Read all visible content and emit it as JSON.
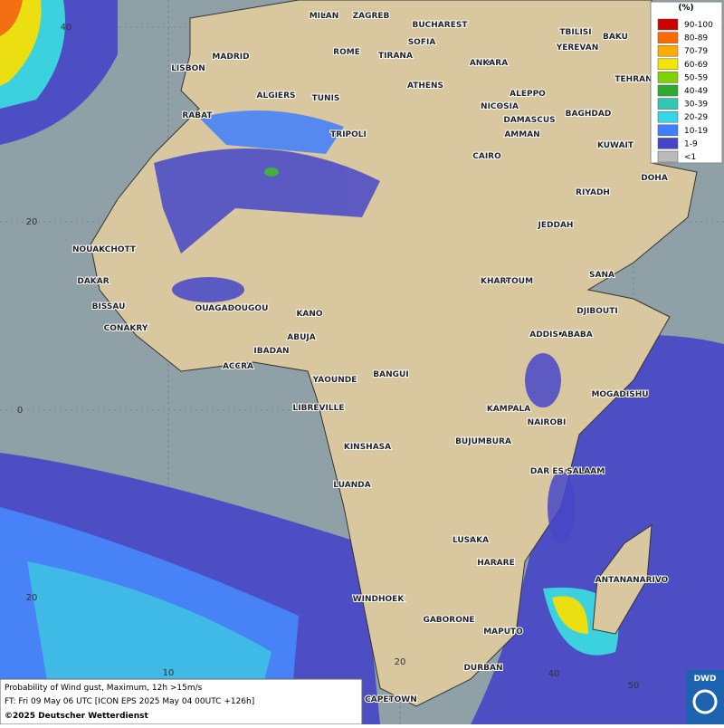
{
  "map": {
    "legend": {
      "title": "(%)",
      "items": [
        {
          "label": "90-100",
          "color": "#cc0000"
        },
        {
          "label": "80-89",
          "color": "#ff6a00"
        },
        {
          "label": "70-79",
          "color": "#ffaa00"
        },
        {
          "label": "60-69",
          "color": "#f5e600"
        },
        {
          "label": "50-59",
          "color": "#7fd400"
        },
        {
          "label": "40-49",
          "color": "#2eaa2e"
        },
        {
          "label": "30-39",
          "color": "#2ec8b4"
        },
        {
          "label": "20-29",
          "color": "#33d7e6"
        },
        {
          "label": "10-19",
          "color": "#3f7fff"
        },
        {
          "label": "1-9",
          "color": "#4646c8"
        },
        {
          "label": "<1",
          "color": "#bbbbbb"
        }
      ]
    },
    "cities": [
      "MILAN",
      "ZAGREB",
      "BUCHAREST",
      "SOFIA",
      "TBILISI",
      "BAKU",
      "YEREVAN",
      "MADRID",
      "ROME",
      "TIRANA",
      "ANKARA",
      "LISBON",
      "TEHRAN",
      "ATHENS",
      "ALGIERS",
      "TUNIS",
      "ALEPPO",
      "RABAT",
      "NICOSIA",
      "BAGHDAD",
      "DAMASCUS",
      "TRIPOLI",
      "AMMAN",
      "KUWAIT",
      "CAIRO",
      "DOHA",
      "RIYADH",
      "JEDDAH",
      "NOUAKCHOTT",
      "SANA",
      "KHARTOUM",
      "DAKAR",
      "BISSAU",
      "OUAGADOUGOU",
      "DJIBOUTI",
      "KANO",
      "CONAKRY",
      "ADDIS ABABA",
      "ABUJA",
      "IBADAN",
      "ACCRA",
      "YAOUNDE",
      "BANGUI",
      "MOGADISHU",
      "LIBREVILLE",
      "KAMPALA",
      "NAIROBI",
      "BUJUMBURA",
      "KINSHASA",
      "DAR ES SALAAM",
      "LUANDA",
      "LUSAKA",
      "HARARE",
      "ANTANANARIVO",
      "WINDHOEK",
      "GABORONE",
      "MAPUTO",
      "DURBAN",
      "CAPETOWN"
    ],
    "graticule_labels": [
      "40",
      "20",
      "0",
      "20",
      "10",
      "20",
      "40",
      "50"
    ],
    "caption": [
      "Probability of Wind gust, Maximum, 12h >15m/s",
      "FT: Fri 09 May 06 UTC [ICON EPS 2025 May 04 00UTC +126h]",
      "©2025 Deutscher Wetterdienst"
    ],
    "logo": "DWD"
  }
}
